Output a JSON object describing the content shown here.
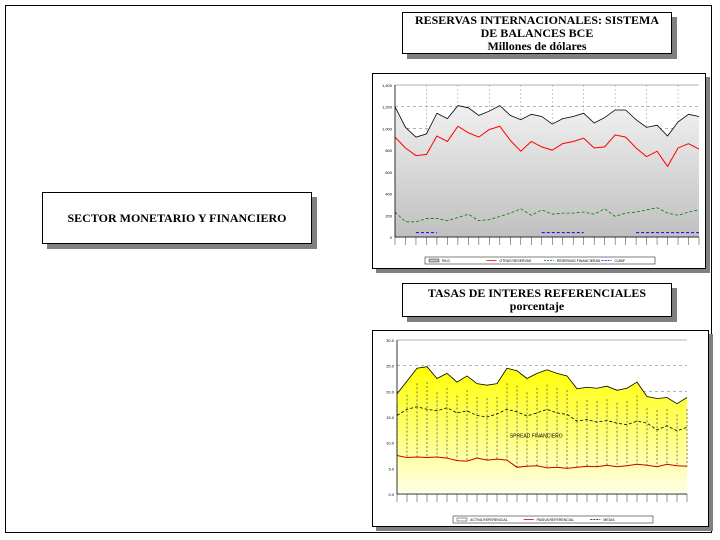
{
  "side_title": "SECTOR MONETARIO Y FINANCIERO",
  "reservas_title": {
    "line1": "RESERVAS INTERNACIONALES: SISTEMA",
    "line2": "DE BALANCES BCE",
    "line3": "Millones de dólares"
  },
  "tasas_title": {
    "line1": "TASAS DE INTERES REFERENCIALES",
    "line2": "porcentaje"
  },
  "colors": {
    "rin": "#c0c0c0",
    "rin_line": "#000000",
    "bcu": "#0000ff",
    "reservas_fin": "#008000",
    "otras": "#ff0000",
    "activa_fill": "#ffff80",
    "pasiva": "#cc0000"
  },
  "chart_data": [
    {
      "type": "line",
      "title": "RESERVAS INTERNACIONALES: SISTEMA DE BALANCES BCE",
      "subtitle": "Millones de dólares",
      "ylim": [
        0,
        1400
      ],
      "yticks": [
        "1,400",
        "1,200",
        "1,000",
        "800",
        "600",
        "400",
        "200",
        "0"
      ],
      "ytick_values": [
        1400,
        1200,
        1000,
        800,
        600,
        400,
        200,
        0
      ],
      "grid": true,
      "legend_position": "bottom",
      "series": [
        {
          "name": "RILD",
          "kind": "area",
          "values": [
            1200,
            1010,
            920,
            950,
            1140,
            1090,
            1210,
            1190,
            1120,
            1160,
            1210,
            1120,
            1080,
            1130,
            1110,
            1040,
            1090,
            1110,
            1140,
            1050,
            1100,
            1170,
            1170,
            1080,
            1010,
            1030,
            930,
            1060,
            1130,
            1110
          ]
        },
        {
          "name": "OTRAS RESERVAS",
          "kind": "line",
          "values": [
            920,
            820,
            750,
            760,
            930,
            880,
            1020,
            960,
            920,
            990,
            1020,
            890,
            790,
            880,
            830,
            800,
            860,
            880,
            910,
            820,
            830,
            940,
            920,
            820,
            740,
            790,
            650,
            820,
            860,
            810
          ]
        },
        {
          "name": "RESERVAS FINANCIERAS",
          "kind": "dashed",
          "values": [
            230,
            140,
            140,
            170,
            170,
            150,
            180,
            210,
            150,
            160,
            190,
            220,
            260,
            200,
            250,
            210,
            220,
            220,
            230,
            210,
            260,
            190,
            220,
            230,
            250,
            270,
            220,
            200,
            230,
            250
          ]
        },
        {
          "name": "CUBIF",
          "kind": "segments",
          "values": [
            null,
            null,
            40,
            40,
            40,
            null,
            null,
            null,
            null,
            null,
            null,
            null,
            null,
            null,
            40,
            40,
            40,
            40,
            40,
            null,
            null,
            null,
            null,
            40,
            40,
            40,
            40,
            40,
            40,
            40
          ]
        }
      ],
      "x_tick_count": 30
    },
    {
      "type": "area",
      "title": "TASAS DE INTERES REFERENCIALES",
      "subtitle": "porcentaje",
      "ylim": [
        0,
        30
      ],
      "yticks": [
        "30.0",
        "25.0",
        "20.0",
        "15.0",
        "10.0",
        "5.0",
        "0.0"
      ],
      "ytick_values": [
        30,
        25,
        20,
        15,
        10,
        5,
        0
      ],
      "grid": true,
      "legend_position": "bottom",
      "annotation": "SPREAD FINANCIERO",
      "series": [
        {
          "name": "ACTIVA REFERENCIAL",
          "kind": "area",
          "values": [
            19.5,
            22,
            24.5,
            24.8,
            22.5,
            23.5,
            21.8,
            23,
            21.5,
            21.2,
            21.5,
            24.5,
            24,
            22.5,
            23.5,
            24.2,
            23.5,
            23,
            20.5,
            20.8,
            20.6,
            21,
            20.2,
            20.6,
            21.8,
            19,
            18.6,
            18.8,
            17.6,
            18.8
          ]
        },
        {
          "name": "PASIVA REFERENCIAL",
          "kind": "line",
          "values": [
            7.5,
            7.1,
            7.2,
            7.1,
            7.2,
            7,
            6.5,
            6.4,
            7,
            6.6,
            6.8,
            6.6,
            5.2,
            5.4,
            5.5,
            5.1,
            5.2,
            5,
            5.2,
            5.4,
            5.3,
            5.6,
            5.3,
            5.5,
            5.8,
            5.6,
            5.3,
            5.8,
            5.5,
            5.4
          ]
        },
        {
          "name": "MEDIA",
          "kind": "dashed",
          "values": [
            15.3,
            16.5,
            17,
            16.5,
            16.2,
            16.8,
            15.8,
            16.2,
            15.3,
            15,
            15.6,
            16.5,
            16,
            15.2,
            15.8,
            16.5,
            15.8,
            15.5,
            14.2,
            14.5,
            14,
            14.3,
            13.8,
            13.5,
            14.2,
            13.8,
            12.5,
            13.3,
            12.3,
            13
          ]
        }
      ],
      "x_tick_count": 30
    }
  ]
}
